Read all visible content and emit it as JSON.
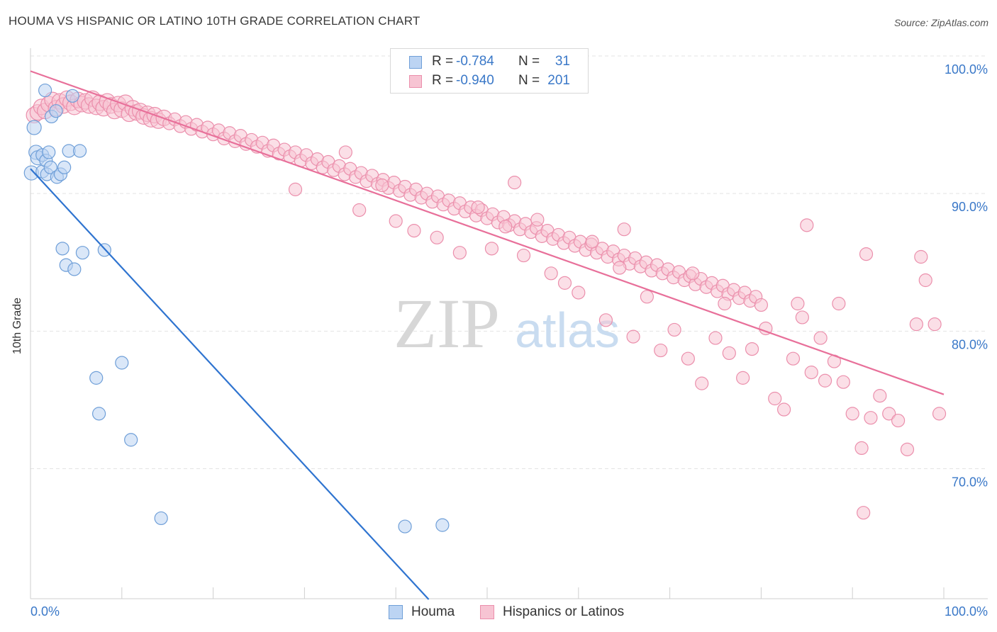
{
  "title": "HOUMA VS HISPANIC OR LATINO 10TH GRADE CORRELATION CHART",
  "source": "Source: ZipAtlas.com",
  "watermark": {
    "zip": "ZIP",
    "atlas": "atlas"
  },
  "legend": {
    "rows": [
      {
        "r_label": "R =",
        "r_value": "-0.784",
        "n_label": "N =",
        "n_value": "31"
      },
      {
        "r_label": "R =",
        "r_value": "-0.940",
        "n_label": "N =",
        "n_value": "201"
      }
    ]
  },
  "bottom_legend": [
    "Houma",
    "Hispanics or Latinos"
  ],
  "colors": {
    "houma_fill": "#bcd4f3",
    "houma_stroke": "#6f9fd8",
    "houma_line": "#2f74d0",
    "hisp_fill": "#f7c4d3",
    "hisp_stroke": "#eb8fac",
    "hisp_line": "#e8709a",
    "tick_label": "#3a78c8",
    "grid": "#e3e3e3"
  },
  "chart_data": {
    "type": "scatter",
    "title": "HOUMA VS HISPANIC OR LATINO 10TH GRADE CORRELATION CHART",
    "xlabel": "",
    "ylabel": "10th Grade",
    "xlim": [
      0,
      100
    ],
    "ylim": [
      60.5,
      101.5
    ],
    "x_tick_labels": [
      "0.0%",
      "100.0%"
    ],
    "y_ticks": [
      70,
      80,
      90,
      100
    ],
    "y_tick_labels": [
      "70.0%",
      "80.0%",
      "90.0%",
      "100.0%"
    ],
    "grid": true,
    "legend_position": "top-center",
    "series": [
      {
        "name": "Houma",
        "r": -0.784,
        "n": 31,
        "trend": {
          "x": [
            0,
            43.6
          ],
          "y": [
            91.8,
            60.5
          ]
        },
        "points": [
          [
            0.1,
            91.5
          ],
          [
            0.4,
            94.8
          ],
          [
            0.6,
            93.0
          ],
          [
            0.8,
            92.6
          ],
          [
            1.3,
            91.6
          ],
          [
            1.3,
            92.8
          ],
          [
            1.6,
            97.5
          ],
          [
            1.7,
            92.4
          ],
          [
            1.8,
            91.4
          ],
          [
            2.0,
            93.0
          ],
          [
            2.2,
            91.9
          ],
          [
            2.3,
            95.6
          ],
          [
            2.8,
            96.0
          ],
          [
            2.9,
            91.2
          ],
          [
            3.3,
            91.4
          ],
          [
            3.5,
            86.0
          ],
          [
            3.7,
            91.9
          ],
          [
            3.9,
            84.8
          ],
          [
            4.2,
            93.1
          ],
          [
            4.6,
            97.1
          ],
          [
            4.8,
            84.5
          ],
          [
            5.4,
            93.1
          ],
          [
            5.7,
            85.7
          ],
          [
            7.2,
            76.6
          ],
          [
            7.5,
            74.0
          ],
          [
            8.1,
            85.9
          ],
          [
            10.0,
            77.7
          ],
          [
            11.0,
            72.1
          ],
          [
            14.3,
            66.4
          ],
          [
            41.0,
            65.8
          ],
          [
            45.1,
            65.9
          ]
        ]
      },
      {
        "name": "Hispanics or Latinos",
        "r": -0.94,
        "n": 201,
        "trend": {
          "x": [
            0,
            100
          ],
          "y": [
            98.9,
            75.4
          ]
        },
        "points": [
          [
            0.4,
            95.7
          ],
          [
            0.8,
            95.9
          ],
          [
            1.2,
            96.3
          ],
          [
            1.6,
            96.0
          ],
          [
            2.0,
            96.5
          ],
          [
            2.4,
            96.8
          ],
          [
            2.8,
            96.2
          ],
          [
            3.2,
            96.7
          ],
          [
            3.6,
            96.4
          ],
          [
            4.0,
            96.9
          ],
          [
            4.4,
            96.6
          ],
          [
            4.8,
            96.3
          ],
          [
            5.2,
            96.8
          ],
          [
            5.6,
            96.5
          ],
          [
            6.0,
            96.7
          ],
          [
            6.4,
            96.4
          ],
          [
            6.8,
            96.9
          ],
          [
            7.2,
            96.3
          ],
          [
            7.6,
            96.6
          ],
          [
            8.0,
            96.2
          ],
          [
            8.4,
            96.7
          ],
          [
            8.8,
            96.4
          ],
          [
            9.2,
            96.0
          ],
          [
            9.6,
            96.5
          ],
          [
            10.0,
            96.1
          ],
          [
            10.4,
            96.6
          ],
          [
            10.8,
            95.8
          ],
          [
            11.2,
            96.2
          ],
          [
            11.6,
            95.9
          ],
          [
            12.0,
            96.0
          ],
          [
            12.4,
            95.6
          ],
          [
            12.8,
            95.8
          ],
          [
            13.2,
            95.4
          ],
          [
            13.6,
            95.7
          ],
          [
            14.0,
            95.3
          ],
          [
            14.6,
            95.5
          ],
          [
            15.2,
            95.1
          ],
          [
            15.8,
            95.4
          ],
          [
            16.4,
            94.9
          ],
          [
            17.0,
            95.2
          ],
          [
            17.6,
            94.7
          ],
          [
            18.2,
            95.0
          ],
          [
            18.8,
            94.5
          ],
          [
            19.4,
            94.8
          ],
          [
            20.0,
            94.3
          ],
          [
            20.6,
            94.6
          ],
          [
            21.2,
            94.0
          ],
          [
            21.8,
            94.4
          ],
          [
            22.4,
            93.8
          ],
          [
            23.0,
            94.2
          ],
          [
            23.6,
            93.6
          ],
          [
            24.2,
            93.9
          ],
          [
            24.8,
            93.4
          ],
          [
            25.4,
            93.7
          ],
          [
            26.0,
            93.1
          ],
          [
            26.6,
            93.5
          ],
          [
            27.2,
            92.9
          ],
          [
            27.8,
            93.2
          ],
          [
            28.4,
            92.7
          ],
          [
            29.0,
            93.0
          ],
          [
            29.6,
            92.4
          ],
          [
            30.2,
            92.8
          ],
          [
            30.8,
            92.2
          ],
          [
            31.4,
            92.5
          ],
          [
            32.0,
            91.9
          ],
          [
            32.6,
            92.3
          ],
          [
            33.2,
            91.7
          ],
          [
            33.8,
            92.0
          ],
          [
            34.4,
            91.4
          ],
          [
            35.0,
            91.8
          ],
          [
            35.6,
            91.2
          ],
          [
            36.2,
            91.5
          ],
          [
            36.8,
            90.9
          ],
          [
            37.4,
            91.3
          ],
          [
            38.0,
            90.7
          ],
          [
            38.6,
            91.0
          ],
          [
            39.2,
            90.4
          ],
          [
            39.8,
            90.8
          ],
          [
            40.4,
            90.2
          ],
          [
            41.0,
            90.5
          ],
          [
            41.6,
            89.9
          ],
          [
            42.2,
            90.3
          ],
          [
            42.8,
            89.7
          ],
          [
            43.4,
            90.0
          ],
          [
            44.0,
            89.4
          ],
          [
            44.6,
            89.8
          ],
          [
            45.2,
            89.2
          ],
          [
            45.8,
            89.5
          ],
          [
            46.4,
            88.9
          ],
          [
            47.0,
            89.3
          ],
          [
            47.6,
            88.7
          ],
          [
            48.2,
            89.0
          ],
          [
            48.8,
            88.4
          ],
          [
            49.4,
            88.8
          ],
          [
            50.0,
            88.2
          ],
          [
            50.6,
            88.5
          ],
          [
            51.2,
            87.9
          ],
          [
            51.8,
            88.3
          ],
          [
            52.4,
            87.7
          ],
          [
            53.0,
            88.0
          ],
          [
            53.6,
            87.4
          ],
          [
            54.2,
            87.8
          ],
          [
            54.8,
            87.2
          ],
          [
            55.4,
            87.5
          ],
          [
            56.0,
            86.9
          ],
          [
            56.6,
            87.3
          ],
          [
            57.2,
            86.7
          ],
          [
            57.8,
            87.0
          ],
          [
            58.4,
            86.4
          ],
          [
            59.0,
            86.8
          ],
          [
            59.6,
            86.2
          ],
          [
            60.2,
            86.5
          ],
          [
            60.8,
            85.9
          ],
          [
            61.4,
            86.3
          ],
          [
            62.0,
            85.7
          ],
          [
            62.6,
            86.0
          ],
          [
            63.2,
            85.4
          ],
          [
            63.8,
            85.8
          ],
          [
            64.4,
            85.2
          ],
          [
            65.0,
            85.5
          ],
          [
            65.6,
            84.9
          ],
          [
            66.2,
            85.3
          ],
          [
            66.8,
            84.7
          ],
          [
            67.4,
            85.0
          ],
          [
            68.0,
            84.4
          ],
          [
            68.6,
            84.8
          ],
          [
            69.2,
            84.2
          ],
          [
            69.8,
            84.5
          ],
          [
            70.4,
            83.9
          ],
          [
            71.0,
            84.3
          ],
          [
            71.6,
            83.7
          ],
          [
            72.2,
            84.0
          ],
          [
            72.8,
            83.4
          ],
          [
            73.4,
            83.8
          ],
          [
            74.0,
            83.2
          ],
          [
            74.6,
            83.5
          ],
          [
            75.2,
            82.9
          ],
          [
            75.8,
            83.3
          ],
          [
            76.4,
            82.7
          ],
          [
            77.0,
            83.0
          ],
          [
            77.6,
            82.4
          ],
          [
            78.2,
            82.8
          ],
          [
            78.8,
            82.2
          ],
          [
            79.4,
            82.5
          ],
          [
            80.0,
            81.9
          ],
          [
            29.0,
            90.3
          ],
          [
            34.5,
            93.0
          ],
          [
            36.0,
            88.8
          ],
          [
            38.5,
            90.6
          ],
          [
            40.0,
            88.0
          ],
          [
            42.0,
            87.3
          ],
          [
            44.5,
            86.8
          ],
          [
            47.0,
            85.7
          ],
          [
            49.0,
            89.0
          ],
          [
            50.5,
            86.0
          ],
          [
            52.0,
            87.6
          ],
          [
            54.0,
            85.5
          ],
          [
            55.5,
            88.1
          ],
          [
            57.0,
            84.2
          ],
          [
            58.5,
            83.5
          ],
          [
            60.0,
            82.8
          ],
          [
            61.5,
            86.5
          ],
          [
            63.0,
            80.8
          ],
          [
            64.5,
            84.6
          ],
          [
            66.0,
            79.6
          ],
          [
            67.5,
            82.5
          ],
          [
            69.0,
            78.6
          ],
          [
            70.5,
            80.1
          ],
          [
            72.0,
            78.0
          ],
          [
            73.5,
            76.2
          ],
          [
            75.0,
            79.5
          ],
          [
            76.5,
            78.4
          ],
          [
            78.0,
            76.6
          ],
          [
            79.0,
            78.7
          ],
          [
            80.5,
            80.2
          ],
          [
            81.5,
            75.1
          ],
          [
            82.5,
            74.3
          ],
          [
            83.5,
            78.0
          ],
          [
            84.5,
            81.0
          ],
          [
            85.5,
            77.0
          ],
          [
            86.5,
            79.5
          ],
          [
            87.0,
            76.4
          ],
          [
            88.0,
            77.8
          ],
          [
            89.0,
            76.3
          ],
          [
            90.0,
            74.0
          ],
          [
            91.0,
            71.5
          ],
          [
            92.0,
            73.7
          ],
          [
            93.0,
            75.3
          ],
          [
            94.0,
            74.0
          ],
          [
            95.0,
            73.5
          ],
          [
            96.0,
            71.4
          ],
          [
            97.0,
            80.5
          ],
          [
            98.0,
            83.7
          ],
          [
            99.0,
            80.5
          ],
          [
            99.5,
            74.0
          ],
          [
            53.0,
            90.8
          ],
          [
            65.0,
            87.4
          ],
          [
            72.5,
            84.2
          ],
          [
            76.0,
            82.0
          ],
          [
            84.0,
            82.0
          ],
          [
            85.0,
            87.7
          ],
          [
            88.5,
            82.0
          ],
          [
            91.5,
            85.6
          ],
          [
            97.5,
            85.4
          ],
          [
            91.2,
            66.8
          ]
        ]
      }
    ]
  }
}
